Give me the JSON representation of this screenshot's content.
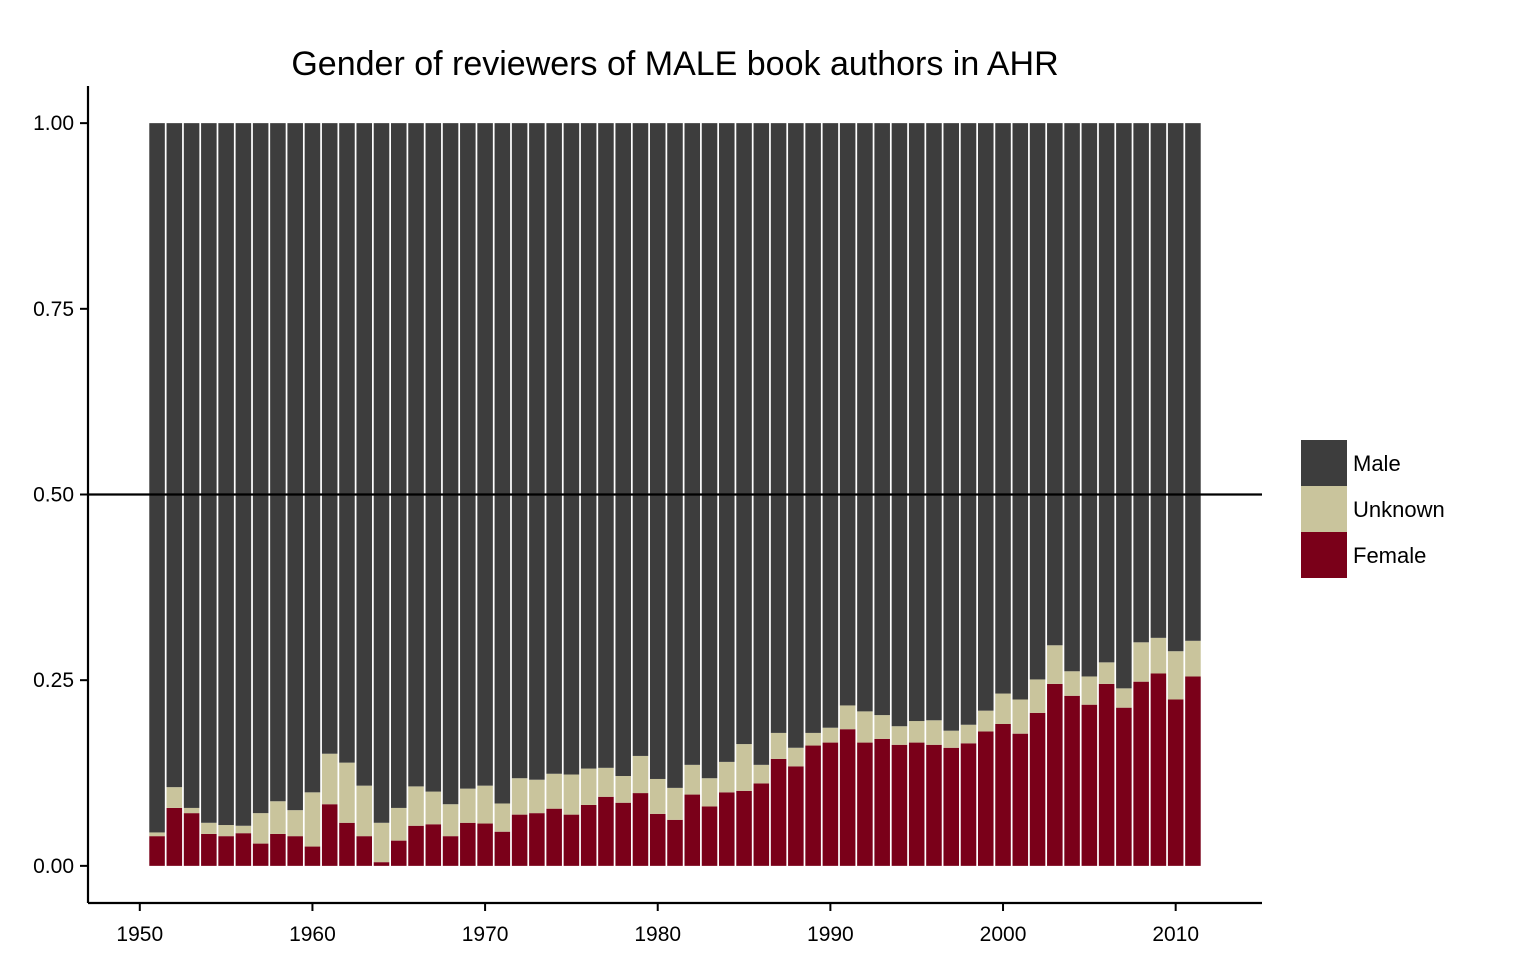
{
  "chart_data": {
    "type": "bar",
    "stacked": true,
    "title": "Gender of reviewers of MALE book authors in AHR",
    "xlabel": "",
    "ylabel": "",
    "xlim": [
      1947,
      2015
    ],
    "ylim": [
      -0.05,
      1.05
    ],
    "x_ticks": [
      1950,
      1960,
      1970,
      1980,
      1990,
      2000,
      2010
    ],
    "y_ticks": [
      0.0,
      0.25,
      0.5,
      0.75,
      1.0
    ],
    "y_tick_labels": [
      "0.00",
      "0.25",
      "0.50",
      "0.75",
      "1.00"
    ],
    "reference_line": 0.5,
    "grid": false,
    "legend_position": "right",
    "legend": [
      "Male",
      "Unknown",
      "Female"
    ],
    "colors": {
      "Male": "#3d3d3d",
      "Unknown": "#c9c49c",
      "Female": "#7a0019",
      "reference_line": "#000000"
    },
    "years": [
      1951,
      1952,
      1953,
      1954,
      1955,
      1956,
      1957,
      1958,
      1959,
      1960,
      1961,
      1962,
      1963,
      1964,
      1965,
      1966,
      1967,
      1968,
      1969,
      1970,
      1971,
      1972,
      1973,
      1974,
      1975,
      1976,
      1977,
      1978,
      1979,
      1980,
      1981,
      1982,
      1983,
      1984,
      1985,
      1986,
      1987,
      1988,
      1989,
      1990,
      1991,
      1992,
      1993,
      1994,
      1995,
      1996,
      1997,
      1998,
      1999,
      2000,
      2001,
      2002,
      2003,
      2004,
      2005,
      2006,
      2007,
      2008,
      2009,
      2010,
      2011
    ],
    "series": [
      {
        "name": "Female",
        "values": [
          0.04,
          0.078,
          0.071,
          0.043,
          0.04,
          0.044,
          0.03,
          0.043,
          0.04,
          0.026,
          0.083,
          0.058,
          0.04,
          0.005,
          0.034,
          0.054,
          0.056,
          0.04,
          0.058,
          0.057,
          0.046,
          0.069,
          0.071,
          0.077,
          0.069,
          0.082,
          0.093,
          0.085,
          0.098,
          0.07,
          0.062,
          0.096,
          0.08,
          0.099,
          0.101,
          0.111,
          0.144,
          0.134,
          0.162,
          0.166,
          0.184,
          0.166,
          0.171,
          0.163,
          0.166,
          0.163,
          0.159,
          0.165,
          0.181,
          0.191,
          0.178,
          0.206,
          0.245,
          0.229,
          0.217,
          0.245,
          0.213,
          0.248,
          0.259,
          0.224,
          0.255
        ]
      },
      {
        "name": "Unknown",
        "values": [
          0.005,
          0.028,
          0.007,
          0.015,
          0.015,
          0.01,
          0.041,
          0.044,
          0.035,
          0.073,
          0.068,
          0.081,
          0.068,
          0.053,
          0.044,
          0.053,
          0.044,
          0.043,
          0.046,
          0.051,
          0.038,
          0.049,
          0.045,
          0.047,
          0.054,
          0.049,
          0.039,
          0.036,
          0.05,
          0.047,
          0.043,
          0.04,
          0.038,
          0.041,
          0.063,
          0.025,
          0.035,
          0.025,
          0.017,
          0.02,
          0.032,
          0.042,
          0.032,
          0.025,
          0.029,
          0.033,
          0.023,
          0.025,
          0.028,
          0.041,
          0.046,
          0.045,
          0.052,
          0.033,
          0.038,
          0.029,
          0.026,
          0.053,
          0.048,
          0.065,
          0.048
        ]
      },
      {
        "name": "Male",
        "values": [
          0.955,
          0.894,
          0.922,
          0.942,
          0.945,
          0.946,
          0.929,
          0.913,
          0.925,
          0.901,
          0.849,
          0.861,
          0.892,
          0.942,
          0.922,
          0.893,
          0.9,
          0.917,
          0.896,
          0.892,
          0.916,
          0.882,
          0.884,
          0.876,
          0.877,
          0.869,
          0.868,
          0.879,
          0.852,
          0.883,
          0.895,
          0.864,
          0.882,
          0.86,
          0.836,
          0.864,
          0.821,
          0.841,
          0.821,
          0.814,
          0.784,
          0.792,
          0.797,
          0.812,
          0.805,
          0.804,
          0.818,
          0.81,
          0.791,
          0.768,
          0.776,
          0.749,
          0.703,
          0.738,
          0.745,
          0.726,
          0.761,
          0.699,
          0.693,
          0.711,
          0.697
        ]
      }
    ]
  }
}
